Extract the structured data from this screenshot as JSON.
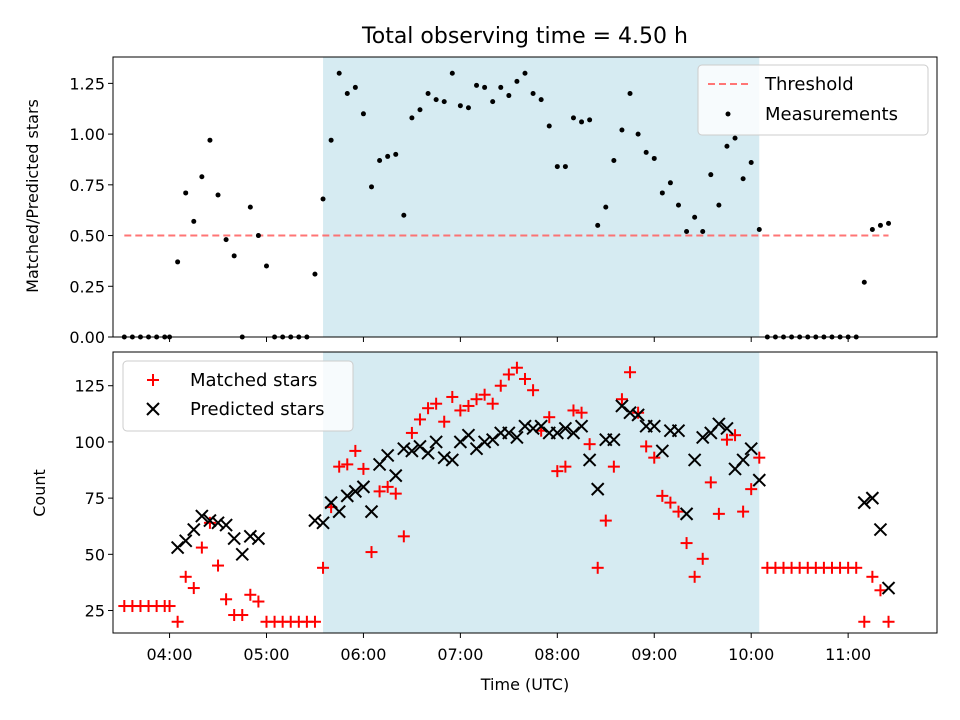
{
  "chart_data": [
    {
      "type": "scatter",
      "title": "Total observing time = 4.50 h",
      "ylabel": "Matched/Predicted stars",
      "xlabel": "",
      "xlim": [
        "03:25",
        "11:55"
      ],
      "ylim": [
        0,
        1.38
      ],
      "yticks": [
        "0.00",
        "0.25",
        "0.50",
        "0.75",
        "1.00",
        "1.25"
      ],
      "grid": false,
      "legend_position": "top-right",
      "highlight_span": [
        "05:35",
        "10:05"
      ],
      "highlight_color": "#add8e6",
      "threshold": {
        "name": "Threshold",
        "value": 0.5,
        "x_start": "03:32",
        "x_end": "11:25",
        "color": "#ff6666"
      },
      "measurements": {
        "name": "Measurements",
        "color": "#000000",
        "points": [
          [
            "03:32",
            0
          ],
          [
            "03:37",
            0
          ],
          [
            "03:42",
            0
          ],
          [
            "03:47",
            0
          ],
          [
            "03:52",
            0
          ],
          [
            "03:57",
            0
          ],
          [
            "04:00",
            0
          ],
          [
            "04:05",
            0.37
          ],
          [
            "04:10",
            0.71
          ],
          [
            "04:15",
            0.57
          ],
          [
            "04:20",
            0.79
          ],
          [
            "04:25",
            0.97
          ],
          [
            "04:30",
            0.7
          ],
          [
            "04:35",
            0.48
          ],
          [
            "04:40",
            0.4
          ],
          [
            "04:45",
            0
          ],
          [
            "04:50",
            0.64
          ],
          [
            "04:55",
            0.5
          ],
          [
            "05:00",
            0.35
          ],
          [
            "05:05",
            0
          ],
          [
            "05:10",
            0
          ],
          [
            "05:15",
            0
          ],
          [
            "05:20",
            0
          ],
          [
            "05:25",
            0
          ],
          [
            "05:30",
            0.31
          ],
          [
            "05:35",
            0.68
          ],
          [
            "05:40",
            0.97
          ],
          [
            "05:45",
            1.3
          ],
          [
            "05:50",
            1.2
          ],
          [
            "05:55",
            1.23
          ],
          [
            "06:00",
            1.1
          ],
          [
            "06:05",
            0.74
          ],
          [
            "06:10",
            0.87
          ],
          [
            "06:15",
            0.89
          ],
          [
            "06:20",
            0.9
          ],
          [
            "06:25",
            0.6
          ],
          [
            "06:30",
            1.08
          ],
          [
            "06:35",
            1.12
          ],
          [
            "06:40",
            1.2
          ],
          [
            "06:45",
            1.17
          ],
          [
            "06:50",
            1.16
          ],
          [
            "06:55",
            1.3
          ],
          [
            "07:00",
            1.14
          ],
          [
            "07:05",
            1.13
          ],
          [
            "07:10",
            1.24
          ],
          [
            "07:15",
            1.23
          ],
          [
            "07:20",
            1.16
          ],
          [
            "07:25",
            1.23
          ],
          [
            "07:30",
            1.19
          ],
          [
            "07:35",
            1.26
          ],
          [
            "07:40",
            1.3
          ],
          [
            "07:45",
            1.2
          ],
          [
            "07:50",
            1.17
          ],
          [
            "07:55",
            1.04
          ],
          [
            "08:00",
            0.84
          ],
          [
            "08:05",
            0.84
          ],
          [
            "08:10",
            1.08
          ],
          [
            "08:15",
            1.06
          ],
          [
            "08:20",
            1.07
          ],
          [
            "08:25",
            0.55
          ],
          [
            "08:30",
            0.64
          ],
          [
            "08:35",
            0.87
          ],
          [
            "08:40",
            1.02
          ],
          [
            "08:45",
            1.2
          ],
          [
            "08:50",
            1.0
          ],
          [
            "08:55",
            0.91
          ],
          [
            "09:00",
            0.88
          ],
          [
            "09:05",
            0.71
          ],
          [
            "09:10",
            0.76
          ],
          [
            "09:15",
            0.65
          ],
          [
            "09:20",
            0.52
          ],
          [
            "09:25",
            0.59
          ],
          [
            "09:30",
            0.52
          ],
          [
            "09:35",
            0.8
          ],
          [
            "09:40",
            0.65
          ],
          [
            "09:45",
            0.94
          ],
          [
            "09:50",
            0.98
          ],
          [
            "09:55",
            0.78
          ],
          [
            "10:00",
            0.86
          ],
          [
            "10:05",
            0.53
          ],
          [
            "10:10",
            0
          ],
          [
            "10:15",
            0
          ],
          [
            "10:20",
            0
          ],
          [
            "10:25",
            0
          ],
          [
            "10:30",
            0
          ],
          [
            "10:35",
            0
          ],
          [
            "10:40",
            0
          ],
          [
            "10:45",
            0
          ],
          [
            "10:50",
            0
          ],
          [
            "10:55",
            0
          ],
          [
            "11:00",
            0
          ],
          [
            "11:05",
            0
          ],
          [
            "11:10",
            0.27
          ],
          [
            "11:15",
            0.53
          ],
          [
            "11:20",
            0.55
          ],
          [
            "11:25",
            0.56
          ]
        ]
      }
    },
    {
      "type": "scatter",
      "title": "",
      "xlabel": "Time (UTC)",
      "ylabel": "Count",
      "xlim": [
        "03:25",
        "11:55"
      ],
      "ylim": [
        15,
        140
      ],
      "xticks": [
        "04:00",
        "05:00",
        "06:00",
        "07:00",
        "08:00",
        "09:00",
        "10:00",
        "11:00"
      ],
      "yticks": [
        "25",
        "50",
        "75",
        "100",
        "125"
      ],
      "grid": false,
      "legend_position": "top-left",
      "highlight_span": [
        "05:35",
        "10:05"
      ],
      "series": [
        {
          "name": "Matched stars",
          "marker": "+",
          "color": "#ff0000",
          "points": [
            [
              "03:32",
              27
            ],
            [
              "03:37",
              27
            ],
            [
              "03:42",
              27
            ],
            [
              "03:47",
              27
            ],
            [
              "03:52",
              27
            ],
            [
              "03:57",
              27
            ],
            [
              "04:00",
              27
            ],
            [
              "04:05",
              20
            ],
            [
              "04:10",
              40
            ],
            [
              "04:15",
              35
            ],
            [
              "04:20",
              53
            ],
            [
              "04:25",
              64
            ],
            [
              "04:30",
              45
            ],
            [
              "04:35",
              30
            ],
            [
              "04:40",
              23
            ],
            [
              "04:45",
              23
            ],
            [
              "04:50",
              32
            ],
            [
              "04:55",
              29
            ],
            [
              "05:00",
              20
            ],
            [
              "05:05",
              20
            ],
            [
              "05:10",
              20
            ],
            [
              "05:15",
              20
            ],
            [
              "05:20",
              20
            ],
            [
              "05:25",
              20
            ],
            [
              "05:30",
              20
            ],
            [
              "05:35",
              44
            ],
            [
              "05:40",
              71
            ],
            [
              "05:45",
              89
            ],
            [
              "05:50",
              90
            ],
            [
              "05:55",
              96
            ],
            [
              "06:00",
              88
            ],
            [
              "06:05",
              51
            ],
            [
              "06:10",
              78
            ],
            [
              "06:15",
              80
            ],
            [
              "06:20",
              77
            ],
            [
              "06:25",
              58
            ],
            [
              "06:30",
              104
            ],
            [
              "06:35",
              110
            ],
            [
              "06:40",
              115
            ],
            [
              "06:45",
              117
            ],
            [
              "06:50",
              109
            ],
            [
              "06:55",
              120
            ],
            [
              "07:00",
              114
            ],
            [
              "07:05",
              116
            ],
            [
              "07:10",
              119
            ],
            [
              "07:15",
              121
            ],
            [
              "07:20",
              117
            ],
            [
              "07:25",
              125
            ],
            [
              "07:30",
              130
            ],
            [
              "07:35",
              133
            ],
            [
              "07:40",
              128
            ],
            [
              "07:45",
              123
            ],
            [
              "07:50",
              105
            ],
            [
              "07:55",
              111
            ],
            [
              "08:00",
              87
            ],
            [
              "08:05",
              89
            ],
            [
              "08:10",
              114
            ],
            [
              "08:15",
              113
            ],
            [
              "08:20",
              99
            ],
            [
              "08:25",
              44
            ],
            [
              "08:30",
              65
            ],
            [
              "08:35",
              89
            ],
            [
              "08:40",
              119
            ],
            [
              "08:45",
              131
            ],
            [
              "08:50",
              113
            ],
            [
              "08:55",
              98
            ],
            [
              "09:00",
              93
            ],
            [
              "09:05",
              76
            ],
            [
              "09:10",
              73
            ],
            [
              "09:15",
              69
            ],
            [
              "09:20",
              55
            ],
            [
              "09:25",
              40
            ],
            [
              "09:30",
              48
            ],
            [
              "09:35",
              82
            ],
            [
              "09:40",
              68
            ],
            [
              "09:45",
              101
            ],
            [
              "09:50",
              103
            ],
            [
              "09:55",
              69
            ],
            [
              "10:00",
              79
            ],
            [
              "10:05",
              93
            ],
            [
              "10:10",
              44
            ],
            [
              "10:15",
              44
            ],
            [
              "10:20",
              44
            ],
            [
              "10:25",
              44
            ],
            [
              "10:30",
              44
            ],
            [
              "10:35",
              44
            ],
            [
              "10:40",
              44
            ],
            [
              "10:45",
              44
            ],
            [
              "10:50",
              44
            ],
            [
              "10:55",
              44
            ],
            [
              "11:00",
              44
            ],
            [
              "11:05",
              44
            ],
            [
              "11:10",
              20
            ],
            [
              "11:15",
              40
            ],
            [
              "11:20",
              34
            ],
            [
              "11:25",
              20
            ]
          ]
        },
        {
          "name": "Predicted stars",
          "marker": "x",
          "color": "#000000",
          "points": [
            [
              "04:05",
              53
            ],
            [
              "04:10",
              56
            ],
            [
              "04:15",
              61
            ],
            [
              "04:20",
              67
            ],
            [
              "04:25",
              65
            ],
            [
              "04:30",
              64
            ],
            [
              "04:35",
              63
            ],
            [
              "04:40",
              57
            ],
            [
              "04:45",
              50
            ],
            [
              "04:50",
              58
            ],
            [
              "04:55",
              57
            ],
            [
              "05:30",
              65
            ],
            [
              "05:35",
              64
            ],
            [
              "05:40",
              73
            ],
            [
              "05:45",
              69
            ],
            [
              "05:50",
              76
            ],
            [
              "05:55",
              78
            ],
            [
              "06:00",
              80
            ],
            [
              "06:05",
              69
            ],
            [
              "06:10",
              90
            ],
            [
              "06:15",
              94
            ],
            [
              "06:20",
              85
            ],
            [
              "06:25",
              97
            ],
            [
              "06:30",
              96
            ],
            [
              "06:35",
              98
            ],
            [
              "06:40",
              95
            ],
            [
              "06:45",
              100
            ],
            [
              "06:50",
              93
            ],
            [
              "06:55",
              92
            ],
            [
              "07:00",
              100
            ],
            [
              "07:05",
              103
            ],
            [
              "07:10",
              97
            ],
            [
              "07:15",
              100
            ],
            [
              "07:20",
              101
            ],
            [
              "07:25",
              104
            ],
            [
              "07:30",
              104
            ],
            [
              "07:35",
              102
            ],
            [
              "07:40",
              107
            ],
            [
              "07:45",
              106
            ],
            [
              "07:50",
              107
            ],
            [
              "07:55",
              104
            ],
            [
              "08:00",
              104
            ],
            [
              "08:05",
              106
            ],
            [
              "08:10",
              104
            ],
            [
              "08:15",
              107
            ],
            [
              "08:20",
              92
            ],
            [
              "08:25",
              79
            ],
            [
              "08:30",
              101
            ],
            [
              "08:35",
              101
            ],
            [
              "08:40",
              116
            ],
            [
              "08:45",
              113
            ],
            [
              "08:50",
              112
            ],
            [
              "08:55",
              107
            ],
            [
              "09:00",
              107
            ],
            [
              "09:05",
              96
            ],
            [
              "09:10",
              105
            ],
            [
              "09:15",
              105
            ],
            [
              "09:20",
              68
            ],
            [
              "09:25",
              92
            ],
            [
              "09:30",
              102
            ],
            [
              "09:35",
              104
            ],
            [
              "09:40",
              108
            ],
            [
              "09:45",
              106
            ],
            [
              "09:50",
              88
            ],
            [
              "09:55",
              92
            ],
            [
              "10:00",
              97
            ],
            [
              "10:05",
              83
            ],
            [
              "11:10",
              73
            ],
            [
              "11:15",
              75
            ],
            [
              "11:20",
              61
            ],
            [
              "11:25",
              35
            ]
          ]
        }
      ]
    }
  ]
}
